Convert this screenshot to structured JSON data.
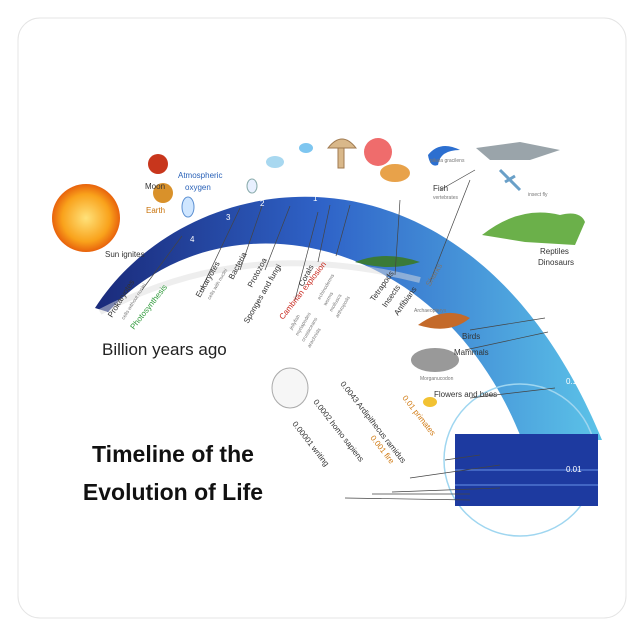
{
  "title": {
    "line1": "Timeline of the",
    "line2": "Evolution of Life"
  },
  "axis_label": "Billion years ago",
  "scale_ticks": [
    "4",
    "3",
    "2",
    "1",
    "0.1",
    "0.01"
  ],
  "events": {
    "sun": "Sun ignites",
    "earth": "Earth",
    "moon": "Moon",
    "oxygen": [
      "Atmospheric",
      "oxygen"
    ],
    "prokaryotes": "Prokaryotes",
    "prokaryotes_note": "cells without nuclei",
    "photosynthesis": "Photosynthesis",
    "eukaryotes": "Eukaryotes",
    "eukaryotes_note": "cells with nuclei",
    "bacteria": "Bacteria",
    "protozoa": "Protozoa",
    "sponges": "Sponges and fungi",
    "corals": "Corals",
    "cambrian": "Cambrian explosion",
    "cambrian_notes": [
      "jellyfish",
      "myriapodes",
      "crustaceans",
      "arachnids",
      "echinoderms",
      "worms",
      "molluscs",
      "arthropods"
    ],
    "tetrapods": "Tetrapods",
    "insects": "Insects",
    "anfibians": "Anfibians",
    "sharks": "Sharks",
    "fish": "Fish",
    "fish_note": "vertebrates",
    "pikaia": "pikaia gracilens",
    "fly": "insect fly",
    "reptiles": "Reptiles",
    "dinosaurs": "Dinosaurs",
    "archaeopteryx": "Archaeopteryx",
    "birds": "Birds",
    "mammals": "Mammals",
    "morganucodon": "Morganucodon",
    "flowers": "Flowers and bees",
    "primates": "0.01 primates",
    "ardipithecus": "0.0043 Ardipithecus ramidus",
    "fire": "0.001 fire",
    "homo": "0.0002 homo sapiens",
    "writing": "0.00001 writing"
  }
}
